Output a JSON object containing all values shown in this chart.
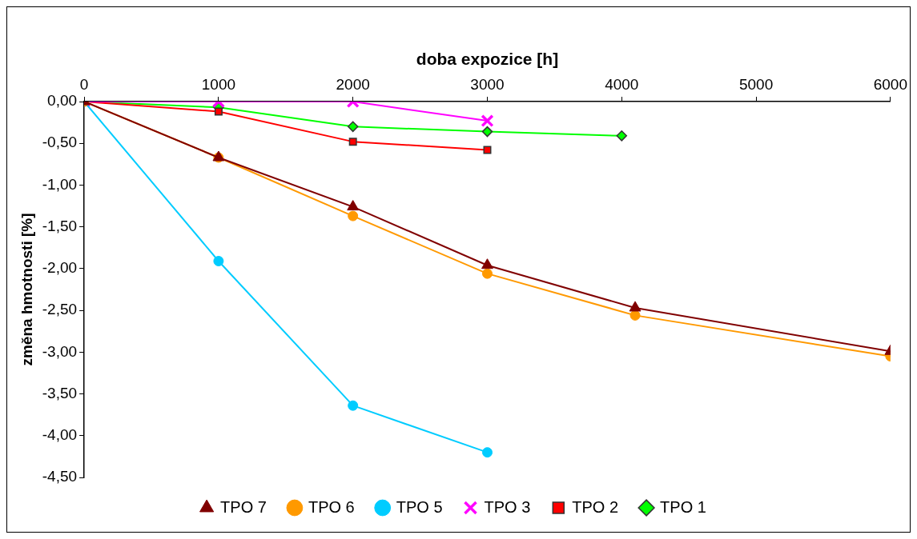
{
  "chart_data": {
    "type": "line",
    "xlabel": "doba expozice [h]",
    "ylabel": "změna hmotnosti [%]",
    "xlim": [
      0,
      6000
    ],
    "xticks": [
      0,
      1000,
      2000,
      3000,
      4000,
      5000,
      6000
    ],
    "ylim": [
      -4.5,
      0
    ],
    "yticks": [
      {
        "value": 0,
        "label": "0,00"
      },
      {
        "value": -0.5,
        "label": "-0,50"
      },
      {
        "value": -1,
        "label": "-1,00"
      },
      {
        "value": -1.5,
        "label": "-1,50"
      },
      {
        "value": -2,
        "label": "-2,00"
      },
      {
        "value": -2.5,
        "label": "-2,50"
      },
      {
        "value": -3,
        "label": "-3,00"
      },
      {
        "value": -3.5,
        "label": "-3,50"
      },
      {
        "value": -4,
        "label": "-4,00"
      },
      {
        "value": -4.5,
        "label": "-4,50"
      }
    ],
    "grid": false,
    "legend": "bottom",
    "series": [
      {
        "name": "TPO 1",
        "color": "#00ff00",
        "marker": "diamond",
        "x": [
          0,
          1000,
          2000,
          3000,
          4000
        ],
        "values": [
          0,
          -0.07,
          -0.3,
          -0.36,
          -0.41
        ]
      },
      {
        "name": "TPO 2",
        "color": "#ff0000",
        "marker": "square",
        "x": [
          0,
          1000,
          2000,
          3000
        ],
        "values": [
          0,
          -0.12,
          -0.48,
          -0.58
        ]
      },
      {
        "name": "TPO 3",
        "color": "#ff00ff",
        "marker": "cross",
        "x": [
          0,
          1000,
          2000,
          3000
        ],
        "values": [
          0,
          0,
          0,
          -0.23
        ]
      },
      {
        "name": "TPO 5",
        "color": "#00ccff",
        "marker": "circle",
        "x": [
          0,
          1000,
          2000,
          3000
        ],
        "values": [
          0,
          -1.91,
          -3.64,
          -4.2
        ]
      },
      {
        "name": "TPO 6",
        "color": "#ff9900",
        "marker": "circle",
        "x": [
          0,
          1000,
          2000,
          3000,
          4100,
          6000
        ],
        "values": [
          0,
          -0.67,
          -1.37,
          -2.06,
          -2.56,
          -3.05
        ]
      },
      {
        "name": "TPO 7",
        "color": "#800000",
        "marker": "triangle",
        "x": [
          0,
          1000,
          2000,
          3000,
          4100,
          6000
        ],
        "values": [
          0,
          -0.67,
          -1.26,
          -1.96,
          -2.47,
          -2.99
        ]
      }
    ]
  }
}
